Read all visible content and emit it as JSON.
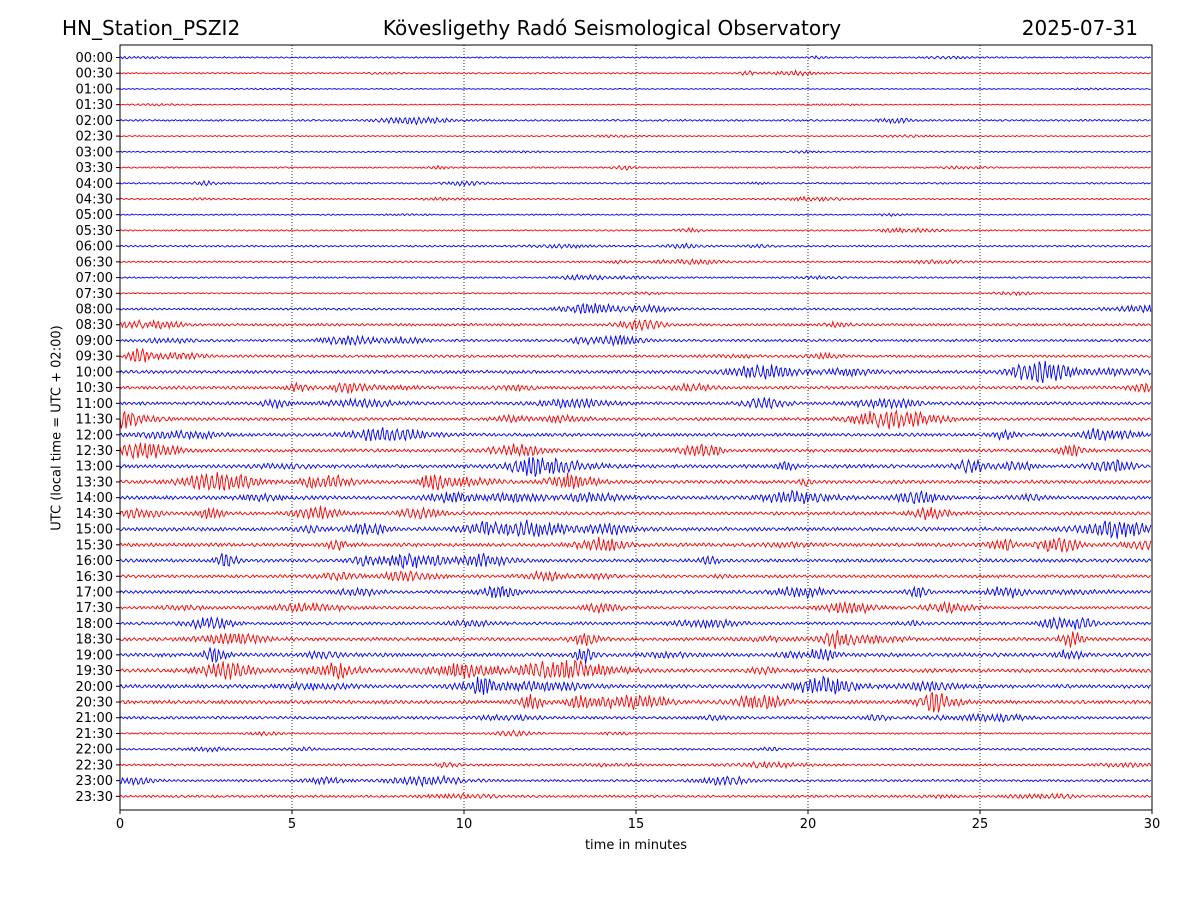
{
  "header": {
    "station": "HN_Station_PSZI2",
    "observatory": "Kövesligethy Radó Seismological Observatory",
    "date": "2025-07-31"
  },
  "chart_data": {
    "type": "line",
    "title": "Kövesligethy Radó Seismological Observatory",
    "xlabel": "time in minutes",
    "ylabel": "UTC (local time = UTC + 02:00)",
    "xlim": [
      0,
      30
    ],
    "xticks": [
      "0",
      "5",
      "10",
      "15",
      "20",
      "25",
      "30"
    ],
    "grid": "vertical dotted lines at every 5 minutes",
    "trace_colors": [
      "#0000ff",
      "#ff0000"
    ],
    "rows": [
      {
        "label": "00:00",
        "activity": 0.25
      },
      {
        "label": "00:30",
        "activity": 0.25
      },
      {
        "label": "01:00",
        "activity": 0.1
      },
      {
        "label": "01:30",
        "activity": 0.1
      },
      {
        "label": "02:00",
        "activity": 0.35
      },
      {
        "label": "02:30",
        "activity": 0.15
      },
      {
        "label": "03:00",
        "activity": 0.2
      },
      {
        "label": "03:30",
        "activity": 0.25
      },
      {
        "label": "04:00",
        "activity": 0.3
      },
      {
        "label": "04:30",
        "activity": 0.25
      },
      {
        "label": "05:00",
        "activity": 0.2
      },
      {
        "label": "05:30",
        "activity": 0.25
      },
      {
        "label": "06:00",
        "activity": 0.35
      },
      {
        "label": "06:30",
        "activity": 0.3
      },
      {
        "label": "07:00",
        "activity": 0.3
      },
      {
        "label": "07:30",
        "activity": 0.2
      },
      {
        "label": "08:00",
        "activity": 0.45
      },
      {
        "label": "08:30",
        "activity": 0.6
      },
      {
        "label": "09:00",
        "activity": 0.6
      },
      {
        "label": "09:30",
        "activity": 0.6
      },
      {
        "label": "10:00",
        "activity": 0.85
      },
      {
        "label": "10:30",
        "activity": 0.8
      },
      {
        "label": "11:00",
        "activity": 0.8
      },
      {
        "label": "11:30",
        "activity": 0.8
      },
      {
        "label": "12:00",
        "activity": 0.85
      },
      {
        "label": "12:30",
        "activity": 0.85
      },
      {
        "label": "13:00",
        "activity": 0.95
      },
      {
        "label": "13:30",
        "activity": 0.95
      },
      {
        "label": "14:00",
        "activity": 0.95
      },
      {
        "label": "14:30",
        "activity": 0.85
      },
      {
        "label": "15:00",
        "activity": 1.0
      },
      {
        "label": "15:30",
        "activity": 0.95
      },
      {
        "label": "16:00",
        "activity": 0.9
      },
      {
        "label": "16:30",
        "activity": 0.8
      },
      {
        "label": "17:00",
        "activity": 0.8
      },
      {
        "label": "17:30",
        "activity": 0.7
      },
      {
        "label": "18:00",
        "activity": 0.75
      },
      {
        "label": "18:30",
        "activity": 0.9
      },
      {
        "label": "19:00",
        "activity": 1.0
      },
      {
        "label": "19:30",
        "activity": 1.0
      },
      {
        "label": "20:00",
        "activity": 1.0
      },
      {
        "label": "20:30",
        "activity": 0.95
      },
      {
        "label": "21:00",
        "activity": 0.7
      },
      {
        "label": "21:30",
        "activity": 0.3
      },
      {
        "label": "22:00",
        "activity": 0.4
      },
      {
        "label": "22:30",
        "activity": 0.5
      },
      {
        "label": "23:00",
        "activity": 0.55
      },
      {
        "label": "23:30",
        "activity": 0.55
      }
    ]
  }
}
